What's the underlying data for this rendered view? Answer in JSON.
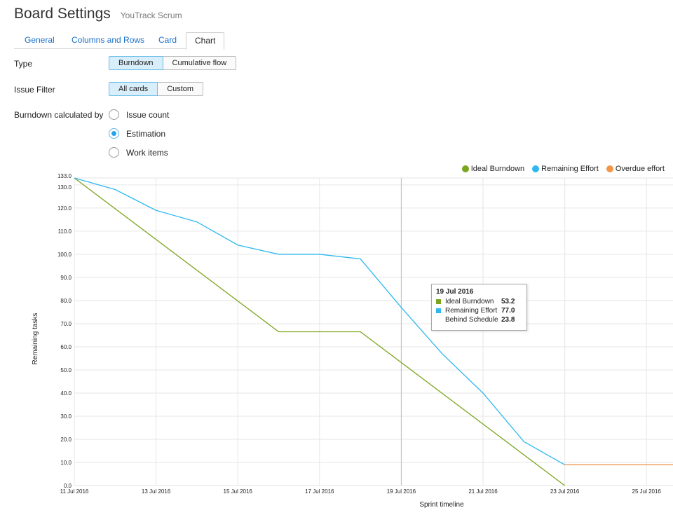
{
  "header": {
    "title": "Board Settings",
    "subtitle": "YouTrack Scrum"
  },
  "tabs": [
    {
      "label": "General",
      "active": false
    },
    {
      "label": "Columns and Rows",
      "active": false
    },
    {
      "label": "Card",
      "active": false
    },
    {
      "label": "Chart",
      "active": true
    }
  ],
  "type_row": {
    "label": "Type",
    "options": [
      "Burndown",
      "Cumulative flow"
    ],
    "selected": "Burndown"
  },
  "filter_row": {
    "label": "Issue Filter",
    "options": [
      "All cards",
      "Custom"
    ],
    "selected": "All cards"
  },
  "calc_row": {
    "label": "Burndown calculated by",
    "options": [
      "Issue count",
      "Estimation",
      "Work items"
    ],
    "selected": "Estimation"
  },
  "legend": [
    {
      "label": "Ideal Burndown",
      "color": "#7aa51d"
    },
    {
      "label": "Remaining Effort",
      "color": "#2fb8f0"
    },
    {
      "label": "Overdue effort",
      "color": "#f3964a"
    }
  ],
  "tooltip": {
    "date": "19 Jul 2016",
    "rows": [
      {
        "name": "Ideal Burndown",
        "value": "53.2",
        "color": "#7aa51d"
      },
      {
        "name": "Remaining Effort",
        "value": "77.0",
        "color": "#2fb8f0"
      },
      {
        "name": "Behind Schedule",
        "value": "23.8",
        "color": ""
      }
    ]
  },
  "chart_data": {
    "type": "line",
    "xlabel": "Sprint timeline",
    "ylabel": "Remaining tasks",
    "ylim": [
      0,
      133
    ],
    "yticks": [
      "0.0",
      "10.0",
      "20.0",
      "30.0",
      "40.0",
      "50.0",
      "60.0",
      "70.0",
      "80.0",
      "90.0",
      "100.0",
      "110.0",
      "120.0",
      "130.0",
      "133.0"
    ],
    "xticks": [
      "11 Jul 2016",
      "13 Jul 2016",
      "15 Jul 2016",
      "17 Jul 2016",
      "19 Jul 2016",
      "21 Jul 2016",
      "23 Jul 2016",
      "25 Jul 2016"
    ],
    "grid": true,
    "hover_date": "19 Jul 2016",
    "series": [
      {
        "name": "Ideal Burndown",
        "color": "#7aa51d",
        "x": [
          "11 Jul 2016",
          "16 Jul 2016",
          "18 Jul 2016",
          "23 Jul 2016"
        ],
        "y": [
          133,
          66.5,
          66.5,
          0
        ]
      },
      {
        "name": "Remaining Effort",
        "color": "#2fb8f0",
        "x": [
          "11 Jul 2016",
          "12 Jul 2016",
          "13 Jul 2016",
          "14 Jul 2016",
          "15 Jul 2016",
          "16 Jul 2016",
          "17 Jul 2016",
          "18 Jul 2016",
          "19 Jul 2016",
          "20 Jul 2016",
          "21 Jul 2016",
          "22 Jul 2016",
          "23 Jul 2016"
        ],
        "y": [
          133,
          128,
          119,
          114,
          104,
          100,
          100,
          98,
          77,
          57,
          40,
          19,
          9
        ]
      },
      {
        "name": "Overdue effort",
        "color": "#f3964a",
        "x": [
          "23 Jul 2016",
          "26 Jul 2016"
        ],
        "y": [
          9,
          9
        ]
      }
    ]
  }
}
